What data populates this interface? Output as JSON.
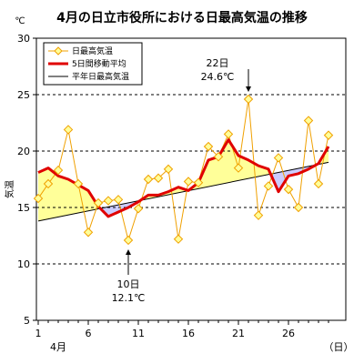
{
  "chart_data": {
    "type": "line",
    "title": "4月の日立市役所における日最高気温の推移",
    "y_unit": "℃",
    "ylabel": "気温",
    "x_month_label": "4月",
    "x_unit": "（日）",
    "xlim": [
      1,
      30
    ],
    "ylim": [
      5,
      30
    ],
    "y_ticks": [
      5,
      10,
      15,
      20,
      25,
      30
    ],
    "x_ticks": [
      1,
      6,
      11,
      16,
      21,
      26
    ],
    "grid": "horizontal-dashed",
    "legend_position": "top-left",
    "colors": {
      "daily": "#f0a000",
      "moving_avg": "#e00000",
      "normal": "#000000",
      "fill_above": "#ffff99",
      "fill_below": "#ccccff"
    },
    "series": [
      {
        "name": "日最高気温",
        "x": [
          1,
          2,
          3,
          4,
          5,
          6,
          7,
          8,
          9,
          10,
          11,
          12,
          13,
          14,
          15,
          16,
          17,
          18,
          19,
          20,
          21,
          22,
          23,
          24,
          25,
          26,
          27,
          28,
          29,
          30
        ],
        "values": [
          15.8,
          17.1,
          18.3,
          21.9,
          17.1,
          12.8,
          15.4,
          15.6,
          15.7,
          12.1,
          14.9,
          17.5,
          17.6,
          18.4,
          12.2,
          17.3,
          17.2,
          20.4,
          19.5,
          21.5,
          18.5,
          24.6,
          14.3,
          16.9,
          19.4,
          16.6,
          15.0,
          22.7,
          17.1,
          21.4
        ]
      },
      {
        "name": "5日間移動平均",
        "x": [
          1,
          2,
          3,
          4,
          5,
          6,
          7,
          8,
          9,
          10,
          11,
          12,
          13,
          14,
          15,
          16,
          17,
          18,
          19,
          20,
          21,
          22,
          23,
          24,
          25,
          26,
          27,
          28,
          29,
          30
        ],
        "values": [
          18.1,
          18.5,
          17.8,
          17.5,
          17.0,
          16.5,
          15.1,
          14.2,
          14.6,
          15.0,
          15.5,
          16.1,
          16.1,
          16.4,
          16.8,
          16.5,
          17.2,
          19.2,
          19.5,
          21.0,
          19.6,
          19.2,
          18.7,
          18.4,
          16.4,
          17.8,
          18.0,
          18.4,
          18.9,
          20.4
        ]
      },
      {
        "name": "平年日最高気温",
        "x": [
          1,
          30
        ],
        "values": [
          13.8,
          19.0
        ]
      }
    ],
    "annotations": [
      {
        "date": "22日",
        "value_text": "24.6℃",
        "x": 22,
        "y": 24.6,
        "direction": "down"
      },
      {
        "date": "10日",
        "value_text": "12.1℃",
        "x": 10,
        "y": 12.1,
        "direction": "up"
      }
    ]
  }
}
